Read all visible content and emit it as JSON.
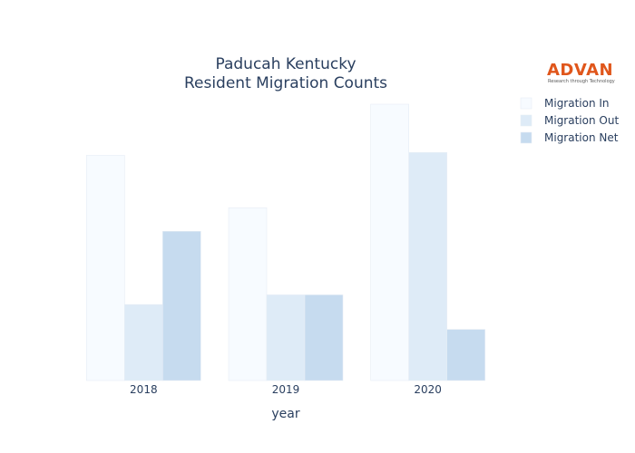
{
  "logo": {
    "name": "ADVAN",
    "tagline": "Research through Technology"
  },
  "chart_data": {
    "type": "bar",
    "title": [
      "Paducah Kentucky",
      "Resident Migration Counts"
    ],
    "xlabel": "year",
    "ylabel": "",
    "categories": [
      "2018",
      "2019",
      "2020"
    ],
    "ylim": [
      0,
      1.0
    ],
    "yaxis_visible": false,
    "grid": false,
    "legend_position": "top-right",
    "series": [
      {
        "name": "Migration In",
        "values": [
          0.815,
          0.625,
          1.0
        ],
        "color": "#f7fbff"
      },
      {
        "name": "Migration Out",
        "values": [
          0.275,
          0.31,
          0.825
        ],
        "color": "#deebf7"
      },
      {
        "name": "Migration Net",
        "values": [
          0.54,
          0.31,
          0.185
        ],
        "color": "#c6dbef"
      }
    ]
  }
}
